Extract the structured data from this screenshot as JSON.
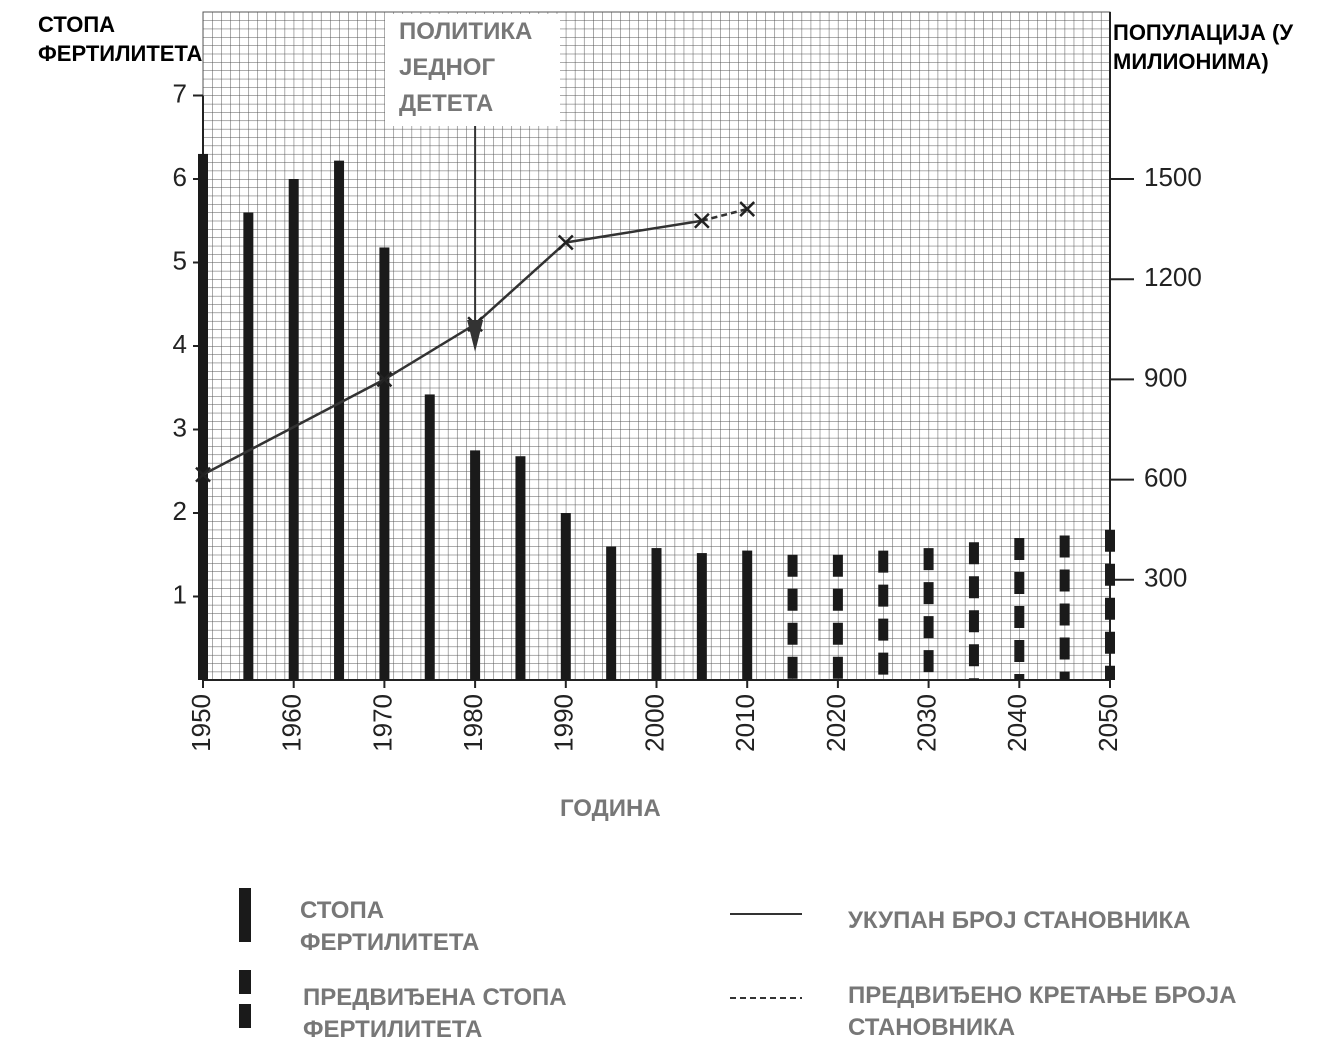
{
  "chart_data": {
    "type": "bar",
    "y_label": "СТОПА ФЕРТИЛИТЕТА",
    "y2_label": "ПОПУЛАЦИЈА (У МИЛИОНИМА)",
    "x_label": "ГОДИНА",
    "annotation": {
      "text": "ПОЛИТИКА ЈЕДНОГ ДЕТЕТА",
      "x": 1980
    },
    "x": [
      1950,
      1955,
      1960,
      1965,
      1970,
      1975,
      1980,
      1985,
      1990,
      1995,
      2000,
      2005,
      2010,
      2015,
      2020,
      2025,
      2030,
      2035,
      2040,
      2045,
      2050
    ],
    "xlim": [
      1950,
      2050
    ],
    "xticks": [
      1950,
      1960,
      1970,
      1980,
      1990,
      2000,
      2010,
      2020,
      2030,
      2040,
      2050
    ],
    "ylim": [
      0,
      8
    ],
    "yticks": [
      1,
      2,
      3,
      4,
      5,
      6,
      7
    ],
    "y2lim": [
      0,
      2000
    ],
    "y2ticks": [
      300,
      600,
      900,
      1200,
      1500
    ],
    "grid": true,
    "series": [
      {
        "name": "СТОПА ФЕРТИЛИТЕТА",
        "type": "bar",
        "color": "#1a1a1a",
        "values": [
          6.3,
          5.6,
          6.0,
          6.22,
          5.18,
          3.42,
          2.75,
          2.68,
          2.0,
          1.6,
          1.58,
          1.52,
          1.55,
          null,
          null,
          null,
          null,
          null,
          null,
          null,
          null
        ]
      },
      {
        "name": "ПРЕДВИЂЕНА СТОПА ФЕРТИЛИТЕТА",
        "type": "bar",
        "dashed": true,
        "color": "#1a1a1a",
        "values": [
          null,
          null,
          null,
          null,
          null,
          null,
          null,
          null,
          null,
          null,
          null,
          null,
          null,
          1.5,
          1.5,
          1.55,
          1.58,
          1.65,
          1.7,
          1.73,
          1.8
        ]
      },
      {
        "name": "УКУПАН БРОЈ СТАНОВНИКА",
        "type": "line",
        "axis": "y2",
        "color": "#333333",
        "x": [
          1950,
          1970,
          1980,
          1990,
          2005
        ],
        "values": [
          615,
          900,
          1065,
          1310,
          1375
        ]
      },
      {
        "name": "ПРЕДВИЂЕНО КРЕТАЊЕ БРОЈА СТАНОВНИКА",
        "type": "line",
        "axis": "y2",
        "dashed": true,
        "color": "#333333",
        "x": [
          2005,
          2010
        ],
        "values": [
          1375,
          1410
        ]
      }
    ]
  }
}
